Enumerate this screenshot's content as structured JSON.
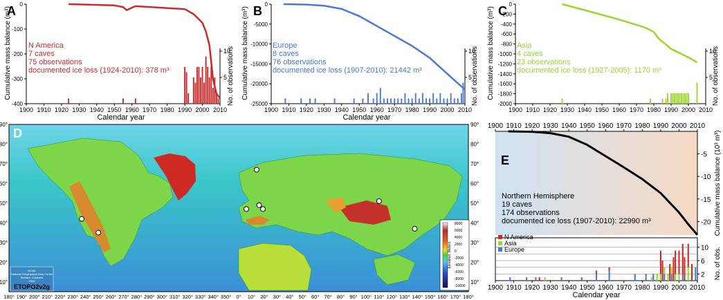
{
  "chart_data": [
    {
      "panel": "A",
      "type": "line+bar",
      "region": "N America",
      "caves": "7 caves",
      "observations_text": "75 observations",
      "ice_loss_text": "documented ice loss (1924-2010): 378 m³",
      "color": "#cc2a2a",
      "xlabel": "Calendar year",
      "ylabel_left": "Cumulative mass balance (m³)",
      "ylabel_right": "No. of observations",
      "xlim": [
        1900,
        2010
      ],
      "ylim_left": [
        -400,
        0
      ],
      "y_ticks_left": [
        0,
        -100,
        -200,
        -300,
        -400
      ],
      "right_ticks": [
        10,
        5
      ],
      "right_max": 10,
      "series_line": {
        "x": [
          1924,
          1950,
          1955,
          1957,
          1962,
          1990,
          1995,
          2000,
          2002,
          2004,
          2006,
          2008,
          2010
        ],
        "y": [
          0,
          -5,
          -12,
          -24,
          -8,
          -20,
          -40,
          -75,
          -110,
          -165,
          -300,
          -360,
          -378
        ]
      },
      "series_bars": {
        "x": [
          1924,
          1955,
          1962,
          1990,
          1991,
          1992,
          1995,
          1996,
          1997,
          1998,
          1999,
          2000,
          2001,
          2002,
          2003,
          2004,
          2005,
          2006,
          2007,
          2008,
          2009
        ],
        "y": [
          1,
          1,
          1,
          7,
          6,
          2,
          5,
          4,
          7,
          7,
          5,
          7,
          4,
          9,
          7,
          5,
          7,
          3,
          5,
          2,
          1
        ]
      }
    },
    {
      "panel": "B",
      "type": "line+bar",
      "region": "Europe",
      "caves": "8 caves",
      "observations_text": "76 observations",
      "ice_loss_text": "documented ice loss (1907-2010): 21442 m³",
      "color": "#4a78d8",
      "xlabel": "Calendar year",
      "ylabel_left": "Cumulative mass balance (m³)",
      "ylabel_right": "No. of observations",
      "xlim": [
        1900,
        2010
      ],
      "ylim_left": [
        -25000,
        0
      ],
      "y_ticks_left": [
        0,
        -5000,
        -10000,
        -15000,
        -20000,
        -25000
      ],
      "right_ticks": [
        10,
        5
      ],
      "right_max": 10,
      "series_line": {
        "x": [
          1907,
          1920,
          1930,
          1940,
          1950,
          1960,
          1970,
          1980,
          1990,
          2000,
          2005,
          2010
        ],
        "y": [
          0,
          -100,
          -400,
          -1200,
          -3000,
          -5500,
          -8000,
          -10500,
          -13500,
          -17500,
          -19500,
          -21442
        ]
      },
      "series_bars": {
        "x": [
          1908,
          1917,
          1922,
          1925,
          1936,
          1947,
          1952,
          1955,
          1958,
          1960,
          1962,
          1964,
          1966,
          1968,
          1970,
          1972,
          1974,
          1976,
          1978,
          1980,
          1982,
          1984,
          1986,
          1988,
          1990,
          1992,
          1994,
          1996,
          1998,
          2000,
          2002,
          2004,
          2006,
          2008,
          2009
        ],
        "y": [
          1,
          1,
          1,
          1,
          1,
          1,
          1,
          2,
          1,
          2,
          3,
          1,
          1,
          1,
          1,
          1,
          1,
          2,
          1,
          1,
          2,
          1,
          2,
          1,
          1,
          2,
          1,
          2,
          1,
          1,
          2,
          1,
          1,
          2,
          4
        ]
      }
    },
    {
      "panel": "C",
      "type": "line+bar",
      "region": "Asia",
      "caves": "4 caves",
      "observations_text": "23 observations",
      "ice_loss_text": "documented ice loss (1927-2005): 1170 m³",
      "color": "#9ad62e",
      "xlabel": "Calendar year",
      "ylabel_left": "Cumulative mass balance (m³)",
      "ylabel_right": "No. of observations",
      "xlim": [
        1900,
        2010
      ],
      "ylim_left": [
        -2000,
        0
      ],
      "y_ticks_left": [
        0,
        -200,
        -400,
        -600,
        -800,
        -1000,
        -1200,
        -1400,
        -1600,
        -1800,
        -2000
      ],
      "right_ticks": [
        10,
        5
      ],
      "right_max": 10,
      "series_line": {
        "x": [
          1927,
          1940,
          1960,
          1975,
          1980,
          1983,
          1986,
          1990,
          2000,
          2005
        ],
        "y": [
          0,
          -120,
          -310,
          -470,
          -560,
          -700,
          -780,
          -900,
          -1070,
          -1170
        ]
      },
      "series_bars": {
        "x": [
          1927,
          1978,
          1985,
          1987,
          1988,
          1990,
          1991,
          1992,
          1993,
          1994,
          1995,
          1996,
          1997,
          1998,
          1999,
          2000,
          2005
        ],
        "y": [
          1,
          1,
          1,
          1,
          2,
          2,
          2,
          2,
          2,
          2,
          2,
          2,
          2,
          2,
          2,
          2,
          4
        ]
      }
    },
    {
      "panel": "E",
      "type": "line+bar",
      "region": "Northern Hemisphere",
      "caves": "19 caves",
      "observations_text": "174 observations",
      "ice_loss_text": "documented ice loss (1907-2010): 22990 m³",
      "line_color": "#000000",
      "xlabel": "Calendar year",
      "ylabel_left": "No. of obs.",
      "ylabel_right": "Cumulative mass balance (10³ m³)",
      "xlim": [
        1900,
        2010
      ],
      "ylim_right": [
        -23,
        0
      ],
      "y_ticks_right": [
        -5,
        -10,
        -15,
        -20
      ],
      "obs_ticks": [
        10,
        6,
        2
      ],
      "obs_max": 12,
      "legend": [
        {
          "label": "N America",
          "color": "#cc2a2a"
        },
        {
          "label": "Asia",
          "color": "#9ad62e"
        },
        {
          "label": "Europe",
          "color": "#4a78d8"
        }
      ],
      "series_line": {
        "x": [
          1907,
          1920,
          1930,
          1940,
          1950,
          1960,
          1970,
          1980,
          1990,
          2000,
          2005,
          2010
        ],
        "y": [
          0,
          -0.1,
          -0.4,
          -1.2,
          -3.0,
          -5.5,
          -8.0,
          -10.6,
          -13.7,
          -18.0,
          -20.6,
          -22.99
        ]
      },
      "series_bars": [
        {
          "name": "Europe",
          "x": [
            1908,
            1917,
            1922,
            1936,
            1947,
            1955,
            1962,
            1976,
            1982,
            1986,
            1992,
            1996,
            2002,
            2009
          ],
          "y": [
            1,
            1,
            1,
            1,
            1,
            2,
            3,
            2,
            2,
            2,
            2,
            2,
            2,
            4
          ]
        },
        {
          "name": "Asia",
          "x": [
            1927,
            1985,
            1988,
            1990,
            1992,
            1994,
            1996,
            1998,
            2000,
            2005
          ],
          "y": [
            1,
            1,
            2,
            2,
            2,
            2,
            2,
            2,
            2,
            4
          ]
        },
        {
          "name": "N America",
          "x": [
            1924,
            1955,
            1962,
            1990,
            1991,
            1995,
            1997,
            1998,
            2000,
            2002,
            2003,
            2005,
            2007
          ],
          "y": [
            1,
            1,
            1,
            7,
            6,
            5,
            7,
            7,
            7,
            9,
            7,
            7,
            5
          ]
        }
      ]
    }
  ],
  "panel_labels": {
    "a": "A",
    "b": "B",
    "c": "C",
    "d": "D",
    "e": "E"
  },
  "x_ticks": [
    "1900",
    "1910",
    "1920",
    "1930",
    "1940",
    "1950",
    "1960",
    "1970",
    "1980",
    "1990",
    "2000",
    "2010"
  ],
  "map": {
    "lon_ticks": [
      "180°",
      "190°",
      "200°",
      "210°",
      "220°",
      "230°",
      "240°",
      "250°",
      "260°",
      "270°",
      "280°",
      "290°",
      "300°",
      "310°",
      "320°",
      "330°",
      "340°",
      "350°",
      "0°",
      "10°",
      "20°",
      "30°",
      "40°",
      "50°",
      "60°",
      "70°",
      "80°",
      "90°",
      "100°",
      "110°",
      "120°",
      "130°",
      "140°",
      "150°",
      "160°",
      "170°",
      "180°"
    ],
    "lat_ticks": [
      "90°",
      "80°",
      "70°",
      "60°",
      "50°",
      "40°",
      "30°",
      "20°",
      "10°"
    ],
    "legend_title": "Elevation: Meters",
    "legend_ticks": [
      "8000",
      "6000",
      "4000",
      "2000",
      "0",
      "-2000",
      "-4000",
      "-6000",
      "-8000",
      "-10000"
    ],
    "credit_lines": [
      "NOAA",
      "National Geophysical Data Center",
      "Boulder, Colorado",
      "2006"
    ],
    "credit_big": "ETOPO2v2g",
    "caves": [
      {
        "lon": -123,
        "lat": 42
      },
      {
        "lon": -110,
        "lat": 35
      },
      {
        "lon": 14,
        "lat": 67
      },
      {
        "lon": 6,
        "lat": 47
      },
      {
        "lon": 16,
        "lat": 49
      },
      {
        "lon": 19,
        "lat": 47
      },
      {
        "lon": 110,
        "lat": 51
      },
      {
        "lon": 138,
        "lat": 37
      }
    ]
  }
}
